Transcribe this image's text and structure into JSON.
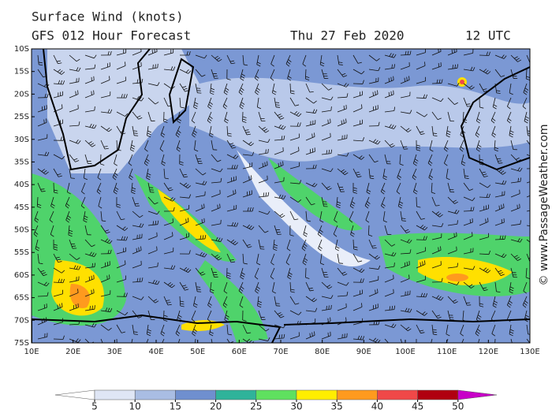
{
  "header": {
    "title": "Surface Wind (knots)",
    "subtitle": "GFS 012 Hour Forecast",
    "date": "Thu 27 Feb 2020",
    "time": "12 UTC"
  },
  "map": {
    "lat_labels": [
      "10S",
      "15S",
      "20S",
      "25S",
      "30S",
      "35S",
      "40S",
      "45S",
      "50S",
      "55S",
      "60S",
      "65S",
      "70S",
      "75S"
    ],
    "lon_labels": [
      "10E",
      "20E",
      "30E",
      "40E",
      "50E",
      "60E",
      "70E",
      "80E",
      "90E",
      "100E",
      "110E",
      "120E",
      "130E"
    ]
  },
  "colorbar": {
    "ticks": [
      5,
      10,
      15,
      20,
      25,
      30,
      35,
      40,
      45,
      50
    ],
    "colors": [
      "#ffffff",
      "#dfe6f5",
      "#a9bde3",
      "#6f8fcf",
      "#2fb39a",
      "#5fe05f",
      "#ffee00",
      "#ff9a1e",
      "#f04848",
      "#b00010",
      "#c800c8"
    ]
  },
  "credit": "© www.PassageWeather.com"
}
